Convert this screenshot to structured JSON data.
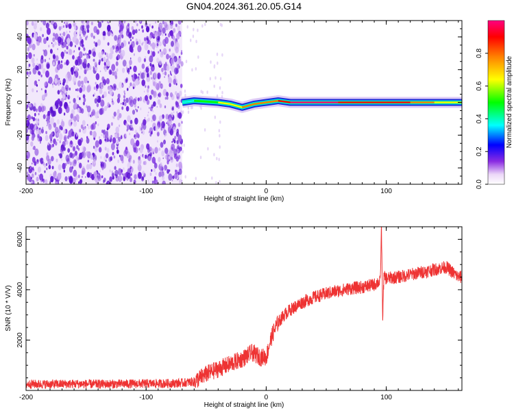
{
  "title": "GN04.2024.361.20.05.G14",
  "chart_data": [
    {
      "type": "heatmap",
      "xlabel": "Height of straight line (km)",
      "ylabel": "Frequency (Hz)",
      "xlim": [
        -200,
        163
      ],
      "ylim": [
        -50,
        50
      ],
      "xticks": [
        -200,
        -100,
        0,
        100
      ],
      "xtick_labels": [
        "-200",
        "-100",
        "0",
        "100"
      ],
      "yticks": [
        -40,
        -20,
        0,
        20,
        40
      ],
      "ytick_labels": [
        "-40",
        "-20",
        "0",
        "20",
        "40"
      ],
      "noise_region_x": [
        -200,
        -70
      ],
      "ridge": {
        "x": [
          -70,
          -60,
          -50,
          -40,
          -30,
          -20,
          -10,
          0,
          10,
          20,
          40,
          60,
          80,
          90,
          100,
          120,
          140,
          163
        ],
        "y": [
          0,
          1,
          0.5,
          0,
          -1,
          -3,
          -1,
          0,
          1,
          0,
          0,
          0,
          0,
          0,
          0,
          0,
          0,
          0
        ],
        "amplitude": [
          0.3,
          0.45,
          0.5,
          0.55,
          0.6,
          0.65,
          0.7,
          0.75,
          0.85,
          0.95,
          0.92,
          0.9,
          0.88,
          0.8,
          0.8,
          0.75,
          0.6,
          0.5
        ]
      },
      "colorbar": {
        "label": "Normalized spectral amplitude",
        "ticks": [
          0.0,
          0.2,
          0.4,
          0.6,
          0.8
        ],
        "tick_labels": [
          "0.0",
          "0.2",
          "0.4",
          "0.6",
          "0.8"
        ],
        "range": [
          0,
          1
        ],
        "colors": [
          "#ffffff",
          "#8a2be2",
          "#0000ff",
          "#00ffff",
          "#00ff00",
          "#ffff00",
          "#ff8000",
          "#ff0000",
          "#ff0080"
        ]
      }
    },
    {
      "type": "line",
      "xlabel": "Height of straight line (km)",
      "ylabel": "SNR (10 * V/V)",
      "xlim": [
        -200,
        163
      ],
      "ylim": [
        0,
        6500
      ],
      "xticks": [
        -200,
        -100,
        0,
        100
      ],
      "xtick_labels": [
        "-200",
        "-100",
        "0",
        "100"
      ],
      "yticks": [
        2000,
        4000,
        6000
      ],
      "ytick_labels": [
        "2000",
        "4000",
        "6000"
      ],
      "color": "#ee3333",
      "series": [
        {
          "x": [
            -200,
            -180,
            -160,
            -140,
            -120,
            -100,
            -80,
            -70,
            -60,
            -55,
            -50,
            -45,
            -40,
            -35,
            -30,
            -25,
            -20,
            -15,
            -12,
            -10,
            -8,
            -6,
            -4,
            -2,
            0,
            2,
            5,
            8,
            10,
            15,
            20,
            25,
            30,
            40,
            50,
            60,
            70,
            80,
            85,
            90,
            93,
            95,
            96,
            97,
            98,
            100,
            110,
            120,
            130,
            140,
            150,
            155,
            160,
            163
          ],
          "y": [
            250,
            250,
            260,
            250,
            260,
            270,
            280,
            300,
            350,
            500,
            650,
            750,
            850,
            950,
            1050,
            1150,
            1250,
            1400,
            1500,
            1450,
            1400,
            1350,
            1300,
            1350,
            1300,
            1700,
            2200,
            2500,
            2700,
            3000,
            3200,
            3350,
            3500,
            3700,
            3850,
            3950,
            4050,
            4100,
            4150,
            4200,
            4300,
            4300,
            6500,
            2900,
            4500,
            4450,
            4500,
            4600,
            4700,
            4800,
            4900,
            4700,
            4500,
            4500
          ]
        }
      ]
    }
  ]
}
